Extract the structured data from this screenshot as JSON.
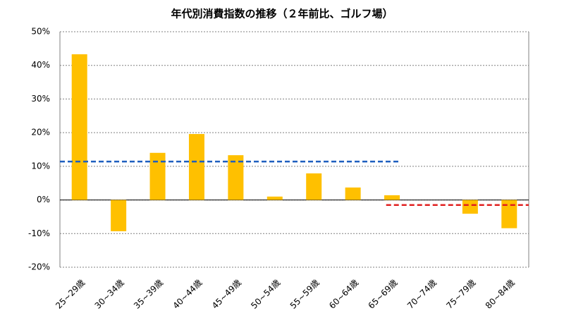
{
  "chart_data": {
    "type": "bar",
    "title": "年代別消費指数の推移（２年前比、ゴルフ場）",
    "categories": [
      "25~29歳",
      "30~34歳",
      "35~39歳",
      "40~44歳",
      "45~49歳",
      "50~54歳",
      "55~59歳",
      "60~64歳",
      "65~69歳",
      "70~74歳",
      "75~79歳",
      "80~84歳"
    ],
    "values": [
      43.3,
      -9.3,
      14.0,
      19.6,
      13.3,
      1.0,
      7.9,
      3.7,
      1.4,
      0,
      -4.1,
      -8.4
    ],
    "color": "#ffc000",
    "ylim": [
      -20,
      50
    ],
    "yticks": [
      {
        "value": -20,
        "label": "-20%"
      },
      {
        "value": -10,
        "label": "-10%"
      },
      {
        "value": 0,
        "label": "0%"
      },
      {
        "value": 10,
        "label": "10%"
      },
      {
        "value": 20,
        "label": "20%"
      },
      {
        "value": 30,
        "label": "30%"
      },
      {
        "value": 40,
        "label": "40%"
      },
      {
        "value": 50,
        "label": "50%"
      }
    ],
    "grid": true,
    "reference_lines": [
      {
        "value": 11.4,
        "color": "#1f5fbf",
        "from": 0,
        "to": 8
      },
      {
        "value": -1.5,
        "color": "#e02020",
        "from": 8,
        "to": 11
      }
    ]
  }
}
